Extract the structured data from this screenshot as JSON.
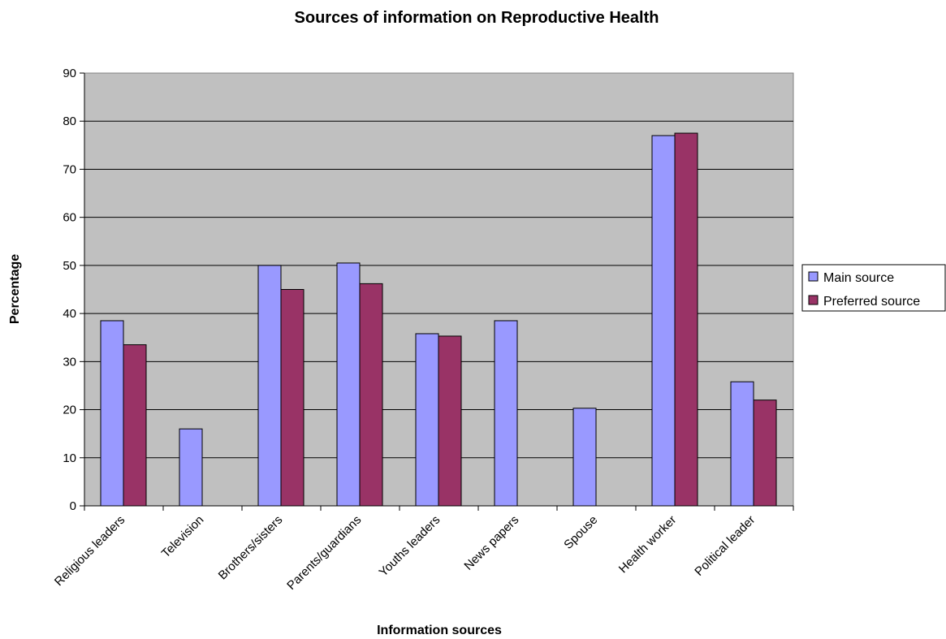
{
  "chart_data": {
    "type": "bar",
    "title": "Sources of information on Reproductive Health",
    "xlabel": "Information sources",
    "ylabel": "Percentage",
    "ylim": [
      0,
      90
    ],
    "yticks": [
      0,
      10,
      20,
      30,
      40,
      50,
      60,
      70,
      80,
      90
    ],
    "grid": true,
    "legend_position": "right",
    "categories": [
      "Religious leaders",
      "Television",
      "Brothers/sisters",
      "Parents/guardians",
      "Youths leaders",
      "News papers",
      "Spouse",
      "Health worker",
      "Political leader"
    ],
    "series": [
      {
        "name": "Main source",
        "color": "#9999ff",
        "values": [
          38.5,
          16,
          50,
          50.5,
          35.8,
          38.5,
          20.3,
          77,
          25.8
        ]
      },
      {
        "name": "Preferred source",
        "color": "#993366",
        "values": [
          33.5,
          null,
          45,
          46.2,
          35.3,
          null,
          null,
          77.5,
          22
        ]
      }
    ],
    "plot_background": "#c0c0c0"
  }
}
